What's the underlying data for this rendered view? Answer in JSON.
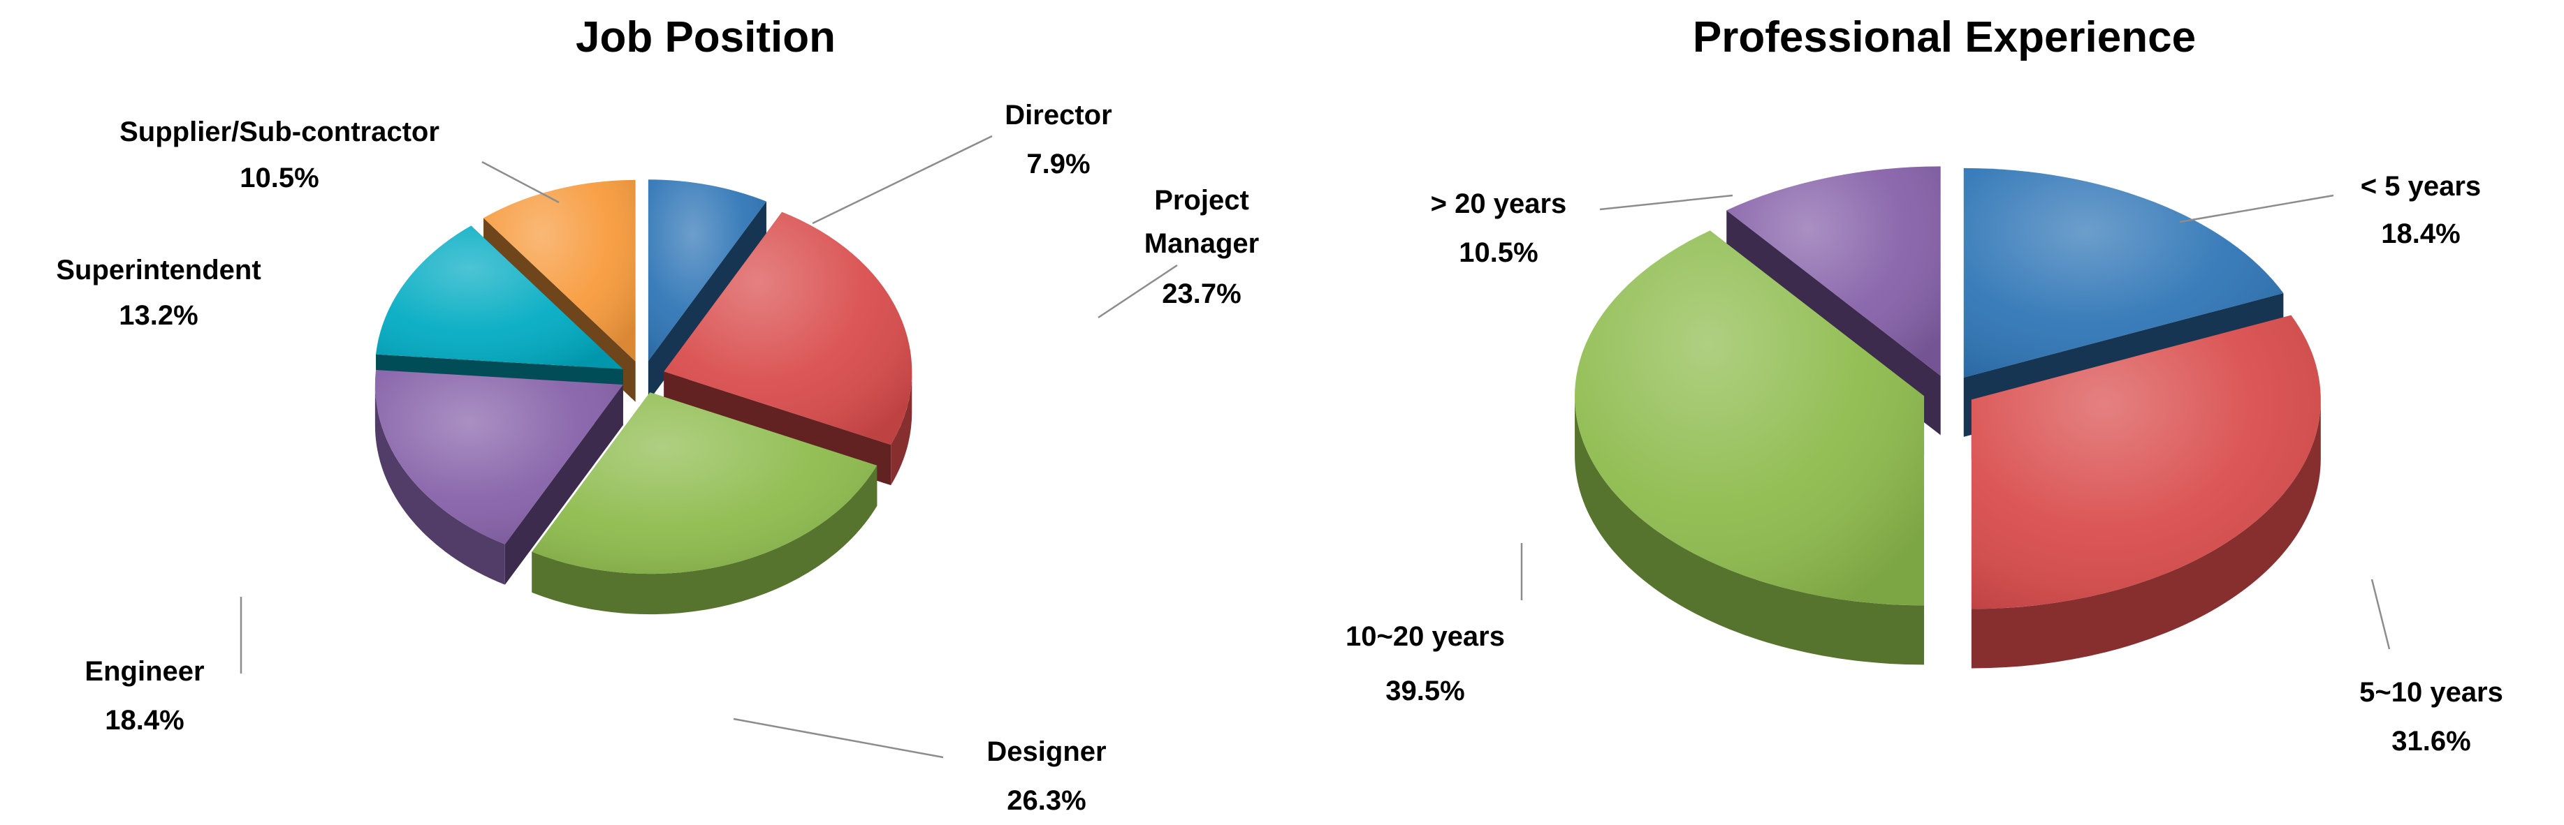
{
  "chart_data": [
    {
      "type": "pie",
      "title": "Job Position",
      "slices": [
        {
          "label": "Director",
          "value": 7.9,
          "value_label": "7.9%",
          "color": "#2E75B6"
        },
        {
          "label": "Project Manager",
          "label_lines": [
            "Project",
            "Manager"
          ],
          "value": 23.7,
          "value_label": "23.7%",
          "color": "#D94B4B"
        },
        {
          "label": "Designer",
          "value": 26.3,
          "value_label": "26.3%",
          "color": "#8DBB4C"
        },
        {
          "label": "Engineer",
          "value": 18.4,
          "value_label": "18.4%",
          "color": "#8560A8"
        },
        {
          "label": "Superintendent",
          "value": 13.2,
          "value_label": "13.2%",
          "color": "#00ABC2"
        },
        {
          "label": "Supplier/Sub-contractor",
          "value": 10.5,
          "value_label": "10.5%",
          "color": "#F79A3C"
        }
      ],
      "exploded": true,
      "perspective": "3d"
    },
    {
      "type": "pie",
      "title": "Professional Experience",
      "slices": [
        {
          "label": "< 5 years",
          "value": 18.4,
          "value_label": "18.4%",
          "color": "#2E75B6"
        },
        {
          "label": "5~10 years",
          "value": 31.6,
          "value_label": "31.6%",
          "color": "#D94B4B"
        },
        {
          "label": "10~20 years",
          "value": 39.5,
          "value_label": "39.5%",
          "color": "#8DBB4C"
        },
        {
          "label": "> 20 years",
          "value": 10.5,
          "value_label": "10.5%",
          "color": "#8560A8"
        }
      ],
      "exploded": true,
      "perspective": "3d"
    }
  ]
}
